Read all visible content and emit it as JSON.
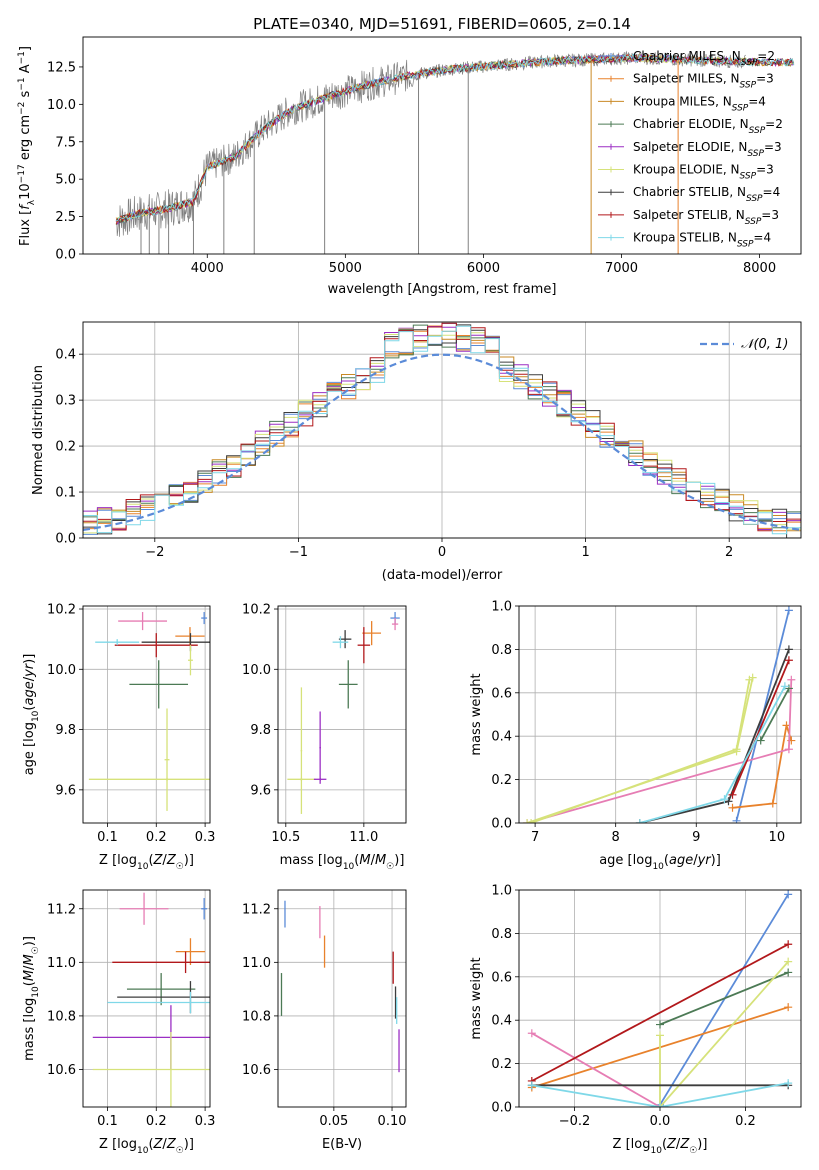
{
  "figure": {
    "title": "PLATE=0340, MJD=51691, FIBERID=0605, z=0.14"
  },
  "colors": {
    "Chabrier MILES": "#5b8bd8",
    "Salpeter MILES": "#e8822c",
    "Kroupa MILES": "#c98a26",
    "Chabrier ELODIE": "#4c7a55",
    "Salpeter ELODIE": "#9b2fc4",
    "Kroupa ELODIE": "#d6e27a",
    "Chabrier STELIB": "#3d3d3d",
    "Salpeter STELIB": "#b2181b",
    "Kroupa STELIB": "#7fd8e8",
    "model_pink": "#e67db4",
    "normal_curve": "#5b8bd8",
    "data_spectrum": "#808080"
  },
  "chart_data": [
    {
      "id": "spectrum",
      "type": "line",
      "xlabel": "wavelength [Angstrom, rest frame]",
      "ylabel": "Flux [f_λ 10^-17 erg cm^-2 s^-1 A^-1]",
      "xlim": [
        3100,
        8300
      ],
      "ylim": [
        0,
        14.5
      ],
      "xticks": [
        "4000",
        "5000",
        "6000",
        "7000",
        "8000"
      ],
      "yticks": [
        "0.0",
        "2.5",
        "5.0",
        "7.5",
        "10.0",
        "12.5"
      ],
      "legend_loc": "upper right",
      "legend": [
        {
          "name": "Chabrier MILES",
          "nssp": "2"
        },
        {
          "name": "Salpeter MILES",
          "nssp": "3"
        },
        {
          "name": "Kroupa MILES",
          "nssp": "4"
        },
        {
          "name": "Chabrier ELODIE",
          "nssp": "2"
        },
        {
          "name": "Salpeter ELODIE",
          "nssp": "3"
        },
        {
          "name": "Kroupa ELODIE",
          "nssp": "3"
        },
        {
          "name": "Chabrier STELIB",
          "nssp": "4"
        },
        {
          "name": "Salpeter STELIB",
          "nssp": "3"
        },
        {
          "name": "Kroupa STELIB",
          "nssp": "4"
        }
      ],
      "continuum": [
        [
          3350,
          2.2
        ],
        [
          3500,
          2.7
        ],
        [
          3700,
          3.0
        ],
        [
          3900,
          3.5
        ],
        [
          4000,
          5.8
        ],
        [
          4200,
          6.5
        ],
        [
          4400,
          8.3
        ],
        [
          4600,
          9.6
        ],
        [
          4900,
          10.6
        ],
        [
          5200,
          11.4
        ],
        [
          5500,
          12.0
        ],
        [
          5800,
          12.4
        ],
        [
          6100,
          12.6
        ],
        [
          6500,
          12.9
        ],
        [
          6800,
          13.0
        ],
        [
          7100,
          13.1
        ],
        [
          7400,
          13.0
        ],
        [
          7700,
          12.9
        ],
        [
          8100,
          12.8
        ]
      ],
      "deep_spikes": [
        3520,
        3580,
        3650,
        3720,
        3900,
        4120,
        4340,
        4850,
        5530,
        5890,
        6780,
        7410
      ]
    },
    {
      "id": "residuals",
      "type": "histogram",
      "xlabel": "(data-model)/error",
      "ylabel": "Normed distribution",
      "xlim": [
        -2.5,
        2.5
      ],
      "ylim": [
        0,
        0.47
      ],
      "xticks": [
        "−2",
        "−1",
        "0",
        "1",
        "2"
      ],
      "yticks": [
        "0.0",
        "0.1",
        "0.2",
        "0.3",
        "0.4"
      ],
      "legend_label": "𝒩(0, 1)",
      "legend_loc": "upper right",
      "bin_width": 0.1,
      "normal": {
        "mu": 0,
        "sigma": 1
      }
    },
    {
      "id": "age-vs-Z",
      "type": "scatter",
      "xlabel": "Z [log10(Z/Z☉)]",
      "ylabel": "age [log10(age/yr)]",
      "xlim": [
        0.05,
        0.31
      ],
      "ylim": [
        9.49,
        10.21
      ],
      "xticks": [
        "0.1",
        "0.2",
        "0.3"
      ],
      "yticks": [
        "9.6",
        "9.8",
        "10.0",
        "10.2"
      ],
      "points": [
        {
          "model": "Chabrier MILES",
          "x": 0.298,
          "xerr": 0.006,
          "y": 10.17,
          "yerr": 0.02
        },
        {
          "model": "Salpeter MILES",
          "x": 0.269,
          "xerr": 0.03,
          "y": 10.11,
          "yerr": 0.03
        },
        {
          "model": "model_pink",
          "x": 0.172,
          "xerr": 0.05,
          "y": 10.16,
          "yerr": 0.03
        },
        {
          "model": "Chabrier STELIB",
          "x": 0.27,
          "xerr": 0.1,
          "y": 10.09,
          "yerr": 0.03
        },
        {
          "model": "Salpeter STELIB",
          "x": 0.2,
          "xerr": 0.085,
          "y": 10.08,
          "yerr": 0.04
        },
        {
          "model": "Kroupa STELIB",
          "x": 0.12,
          "xerr": 0.045,
          "y": 10.09,
          "yerr": 0.01
        },
        {
          "model": "Chabrier ELODIE",
          "x": 0.205,
          "xerr": 0.06,
          "y": 9.95,
          "yerr": 0.08
        },
        {
          "model": "Kroupa ELODIE",
          "x": 0.27,
          "xerr": 0.005,
          "y": 10.03,
          "yerr": 0.05
        },
        {
          "model": "Kroupa ELODIE",
          "x": 0.222,
          "xerr": 0.16,
          "y": 9.635,
          "yerr": 0.005
        },
        {
          "model": "Kroupa ELODIE",
          "x": 0.222,
          "xerr": 0.005,
          "y": 9.7,
          "yerr": 0.17
        }
      ]
    },
    {
      "id": "age-vs-mass",
      "type": "scatter",
      "xlabel": "mass [log10(M/M☉)]",
      "ylabel": "",
      "xlim": [
        10.45,
        11.27
      ],
      "ylim": [
        9.49,
        10.21
      ],
      "xticks": [
        "10.5",
        "11.0"
      ],
      "yticks": [
        "9.6",
        "9.8",
        "10.0",
        "10.2"
      ],
      "points": [
        {
          "model": "Chabrier MILES",
          "x": 11.2,
          "xerr": 0.03,
          "y": 10.17,
          "yerr": 0.02
        },
        {
          "model": "Salpeter MILES",
          "x": 11.05,
          "xerr": 0.06,
          "y": 10.12,
          "yerr": 0.04
        },
        {
          "model": "model_pink",
          "x": 11.2,
          "xerr": 0.02,
          "y": 10.15,
          "yerr": 0.02
        },
        {
          "model": "Salpeter STELIB",
          "x": 11.0,
          "xerr": 0.04,
          "y": 10.08,
          "yerr": 0.06
        },
        {
          "model": "Chabrier STELIB",
          "x": 10.88,
          "xerr": 0.04,
          "y": 10.1,
          "yerr": 0.03
        },
        {
          "model": "Kroupa STELIB",
          "x": 10.85,
          "xerr": 0.05,
          "y": 10.09,
          "yerr": 0.02
        },
        {
          "model": "Chabrier ELODIE",
          "x": 10.9,
          "xerr": 0.06,
          "y": 9.95,
          "yerr": 0.08
        },
        {
          "model": "Kroupa ELODIE",
          "x": 10.6,
          "xerr": 0.09,
          "y": 9.635,
          "yerr": 0.005
        },
        {
          "model": "Kroupa ELODIE",
          "x": 10.6,
          "xerr": 0.005,
          "y": 9.73,
          "yerr": 0.21
        },
        {
          "model": "Salpeter ELODIE",
          "x": 10.72,
          "xerr": 0.04,
          "y": 9.635,
          "yerr": 0.005
        },
        {
          "model": "Salpeter ELODIE",
          "x": 10.72,
          "xerr": 0.005,
          "y": 9.74,
          "yerr": 0.12
        }
      ]
    },
    {
      "id": "weight-vs-age",
      "type": "line",
      "xlabel": "age [log10(age/yr)]",
      "ylabel": "mass weight",
      "xlim": [
        6.8,
        10.3
      ],
      "ylim": [
        0,
        1.0
      ],
      "xticks": [
        "7",
        "8",
        "9",
        "10"
      ],
      "yticks": [
        "0.0",
        "0.2",
        "0.4",
        "0.6",
        "0.8",
        "1.0"
      ],
      "series": [
        {
          "model": "Chabrier MILES",
          "points": [
            [
              9.5,
              0.01
            ],
            [
              10.15,
              0.98
            ]
          ]
        },
        {
          "model": "Salpeter MILES",
          "points": [
            [
              9.45,
              0.07
            ],
            [
              9.95,
              0.09
            ],
            [
              10.12,
              0.45
            ],
            [
              10.18,
              0.38
            ]
          ]
        },
        {
          "model": "model_pink",
          "points": [
            [
              6.9,
              0.0
            ],
            [
              10.15,
              0.34
            ],
            [
              10.18,
              0.66
            ]
          ]
        },
        {
          "model": "Chabrier ELODIE",
          "points": [
            [
              9.8,
              0.38
            ],
            [
              10.15,
              0.62
            ]
          ]
        },
        {
          "model": "Kroupa ELODIE",
          "points": [
            [
              6.9,
              0.0
            ],
            [
              9.5,
              0.33
            ],
            [
              9.7,
              0.67
            ]
          ]
        },
        {
          "model": "Kroupa ELODIE",
          "points": [
            [
              6.95,
              0.0
            ],
            [
              9.5,
              0.34
            ],
            [
              9.66,
              0.66
            ]
          ]
        },
        {
          "model": "Chabrier STELIB",
          "points": [
            [
              8.3,
              0.0
            ],
            [
              9.4,
              0.1
            ],
            [
              10.15,
              0.8
            ]
          ]
        },
        {
          "model": "Salpeter STELIB",
          "points": [
            [
              9.45,
              0.13
            ],
            [
              10.15,
              0.75
            ]
          ]
        },
        {
          "model": "Kroupa STELIB",
          "points": [
            [
              8.3,
              0.0
            ],
            [
              9.35,
              0.11
            ],
            [
              10.1,
              0.63
            ]
          ]
        }
      ]
    },
    {
      "id": "mass-vs-Z",
      "type": "scatter",
      "xlabel": "Z [log10(Z/Z☉)]",
      "ylabel": "mass [log10(M/M☉)]",
      "xlim": [
        0.05,
        0.31
      ],
      "ylim": [
        10.46,
        11.27
      ],
      "xticks": [
        "0.1",
        "0.2",
        "0.3"
      ],
      "yticks": [
        "10.6",
        "10.8",
        "11.0",
        "11.2"
      ],
      "points": [
        {
          "model": "Chabrier MILES",
          "x": 0.298,
          "xerr": 0.006,
          "y": 11.2,
          "yerr": 0.04
        },
        {
          "model": "Salpeter MILES",
          "x": 0.27,
          "xerr": 0.03,
          "y": 11.04,
          "yerr": 0.05
        },
        {
          "model": "model_pink",
          "x": 0.175,
          "xerr": 0.05,
          "y": 11.2,
          "yerr": 0.06
        },
        {
          "model": "Salpeter STELIB",
          "x": 0.26,
          "xerr": 0.15,
          "y": 11.0,
          "yerr": 0.04
        },
        {
          "model": "Chabrier ELODIE",
          "x": 0.21,
          "xerr": 0.07,
          "y": 10.9,
          "yerr": 0.06
        },
        {
          "model": "Chabrier STELIB",
          "x": 0.27,
          "xerr": 0.15,
          "y": 10.87,
          "yerr": 0.06
        },
        {
          "model": "Kroupa STELIB",
          "x": 0.27,
          "xerr": 0.17,
          "y": 10.85,
          "yerr": 0.04
        },
        {
          "model": "Salpeter ELODIE",
          "x": 0.23,
          "xerr": 0.16,
          "y": 10.72,
          "yerr": 0.12
        },
        {
          "model": "Kroupa ELODIE",
          "x": 0.23,
          "xerr": 0.16,
          "y": 10.6,
          "yerr": 0.14
        }
      ]
    },
    {
      "id": "mass-vs-ebv",
      "type": "scatter",
      "xlabel": "E(B-V)",
      "ylabel": "",
      "xlim": [
        0.002,
        0.112
      ],
      "ylim": [
        10.46,
        11.27
      ],
      "xticks": [
        "0.05",
        "0.10"
      ],
      "yticks": [
        "10.6",
        "10.8",
        "11.0",
        "11.2"
      ],
      "points": [
        {
          "model": "Chabrier MILES",
          "x": 0.008,
          "xerr": 0,
          "y": 11.18,
          "yerr": 0.05
        },
        {
          "model": "Chabrier ELODIE",
          "x": 0.005,
          "xerr": 0,
          "y": 10.88,
          "yerr": 0.08
        },
        {
          "model": "model_pink",
          "x": 0.038,
          "xerr": 0,
          "y": 11.15,
          "yerr": 0.06
        },
        {
          "model": "Salpeter MILES",
          "x": 0.042,
          "xerr": 0,
          "y": 11.04,
          "yerr": 0.06
        },
        {
          "model": "Salpeter STELIB",
          "x": 0.101,
          "xerr": 0,
          "y": 10.98,
          "yerr": 0.06
        },
        {
          "model": "Chabrier STELIB",
          "x": 0.103,
          "xerr": 0,
          "y": 10.85,
          "yerr": 0.06
        },
        {
          "model": "Kroupa STELIB",
          "x": 0.104,
          "xerr": 0,
          "y": 10.82,
          "yerr": 0.05
        },
        {
          "model": "Salpeter ELODIE",
          "x": 0.106,
          "xerr": 0,
          "y": 10.67,
          "yerr": 0.08
        }
      ]
    },
    {
      "id": "weight-vs-Z",
      "type": "line",
      "xlabel": "Z [log10(Z/Z☉)]",
      "ylabel": "mass weight",
      "xlim": [
        -0.33,
        0.33
      ],
      "ylim": [
        0,
        1.0
      ],
      "xticks": [
        "−0.2",
        "0.0",
        "0.2"
      ],
      "yticks": [
        "0.0",
        "0.2",
        "0.4",
        "0.6",
        "0.8",
        "1.0"
      ],
      "series": [
        {
          "model": "Chabrier MILES",
          "points": [
            [
              0.0,
              0.01
            ],
            [
              0.3,
              0.98
            ]
          ]
        },
        {
          "model": "Salpeter MILES",
          "points": [
            [
              -0.3,
              0.09
            ],
            [
              0.3,
              0.46
            ]
          ]
        },
        {
          "model": "model_pink",
          "points": [
            [
              -0.3,
              0.34
            ],
            [
              0.0,
              0.0
            ]
          ]
        },
        {
          "model": "Chabrier ELODIE",
          "points": [
            [
              0.0,
              0.38
            ],
            [
              0.3,
              0.62
            ]
          ]
        },
        {
          "model": "Kroupa ELODIE",
          "points": [
            [
              0.0,
              0.33
            ],
            [
              0.0,
              0.0
            ],
            [
              0.3,
              0.67
            ]
          ]
        },
        {
          "model": "Salpeter STELIB",
          "points": [
            [
              -0.3,
              0.12
            ],
            [
              0.3,
              0.75
            ]
          ]
        },
        {
          "model": "Chabrier STELIB",
          "points": [
            [
              -0.3,
              0.1
            ],
            [
              0.3,
              0.1
            ]
          ]
        },
        {
          "model": "Kroupa STELIB",
          "points": [
            [
              -0.3,
              0.1
            ],
            [
              0.0,
              0.0
            ],
            [
              0.3,
              0.11
            ]
          ]
        }
      ]
    }
  ]
}
